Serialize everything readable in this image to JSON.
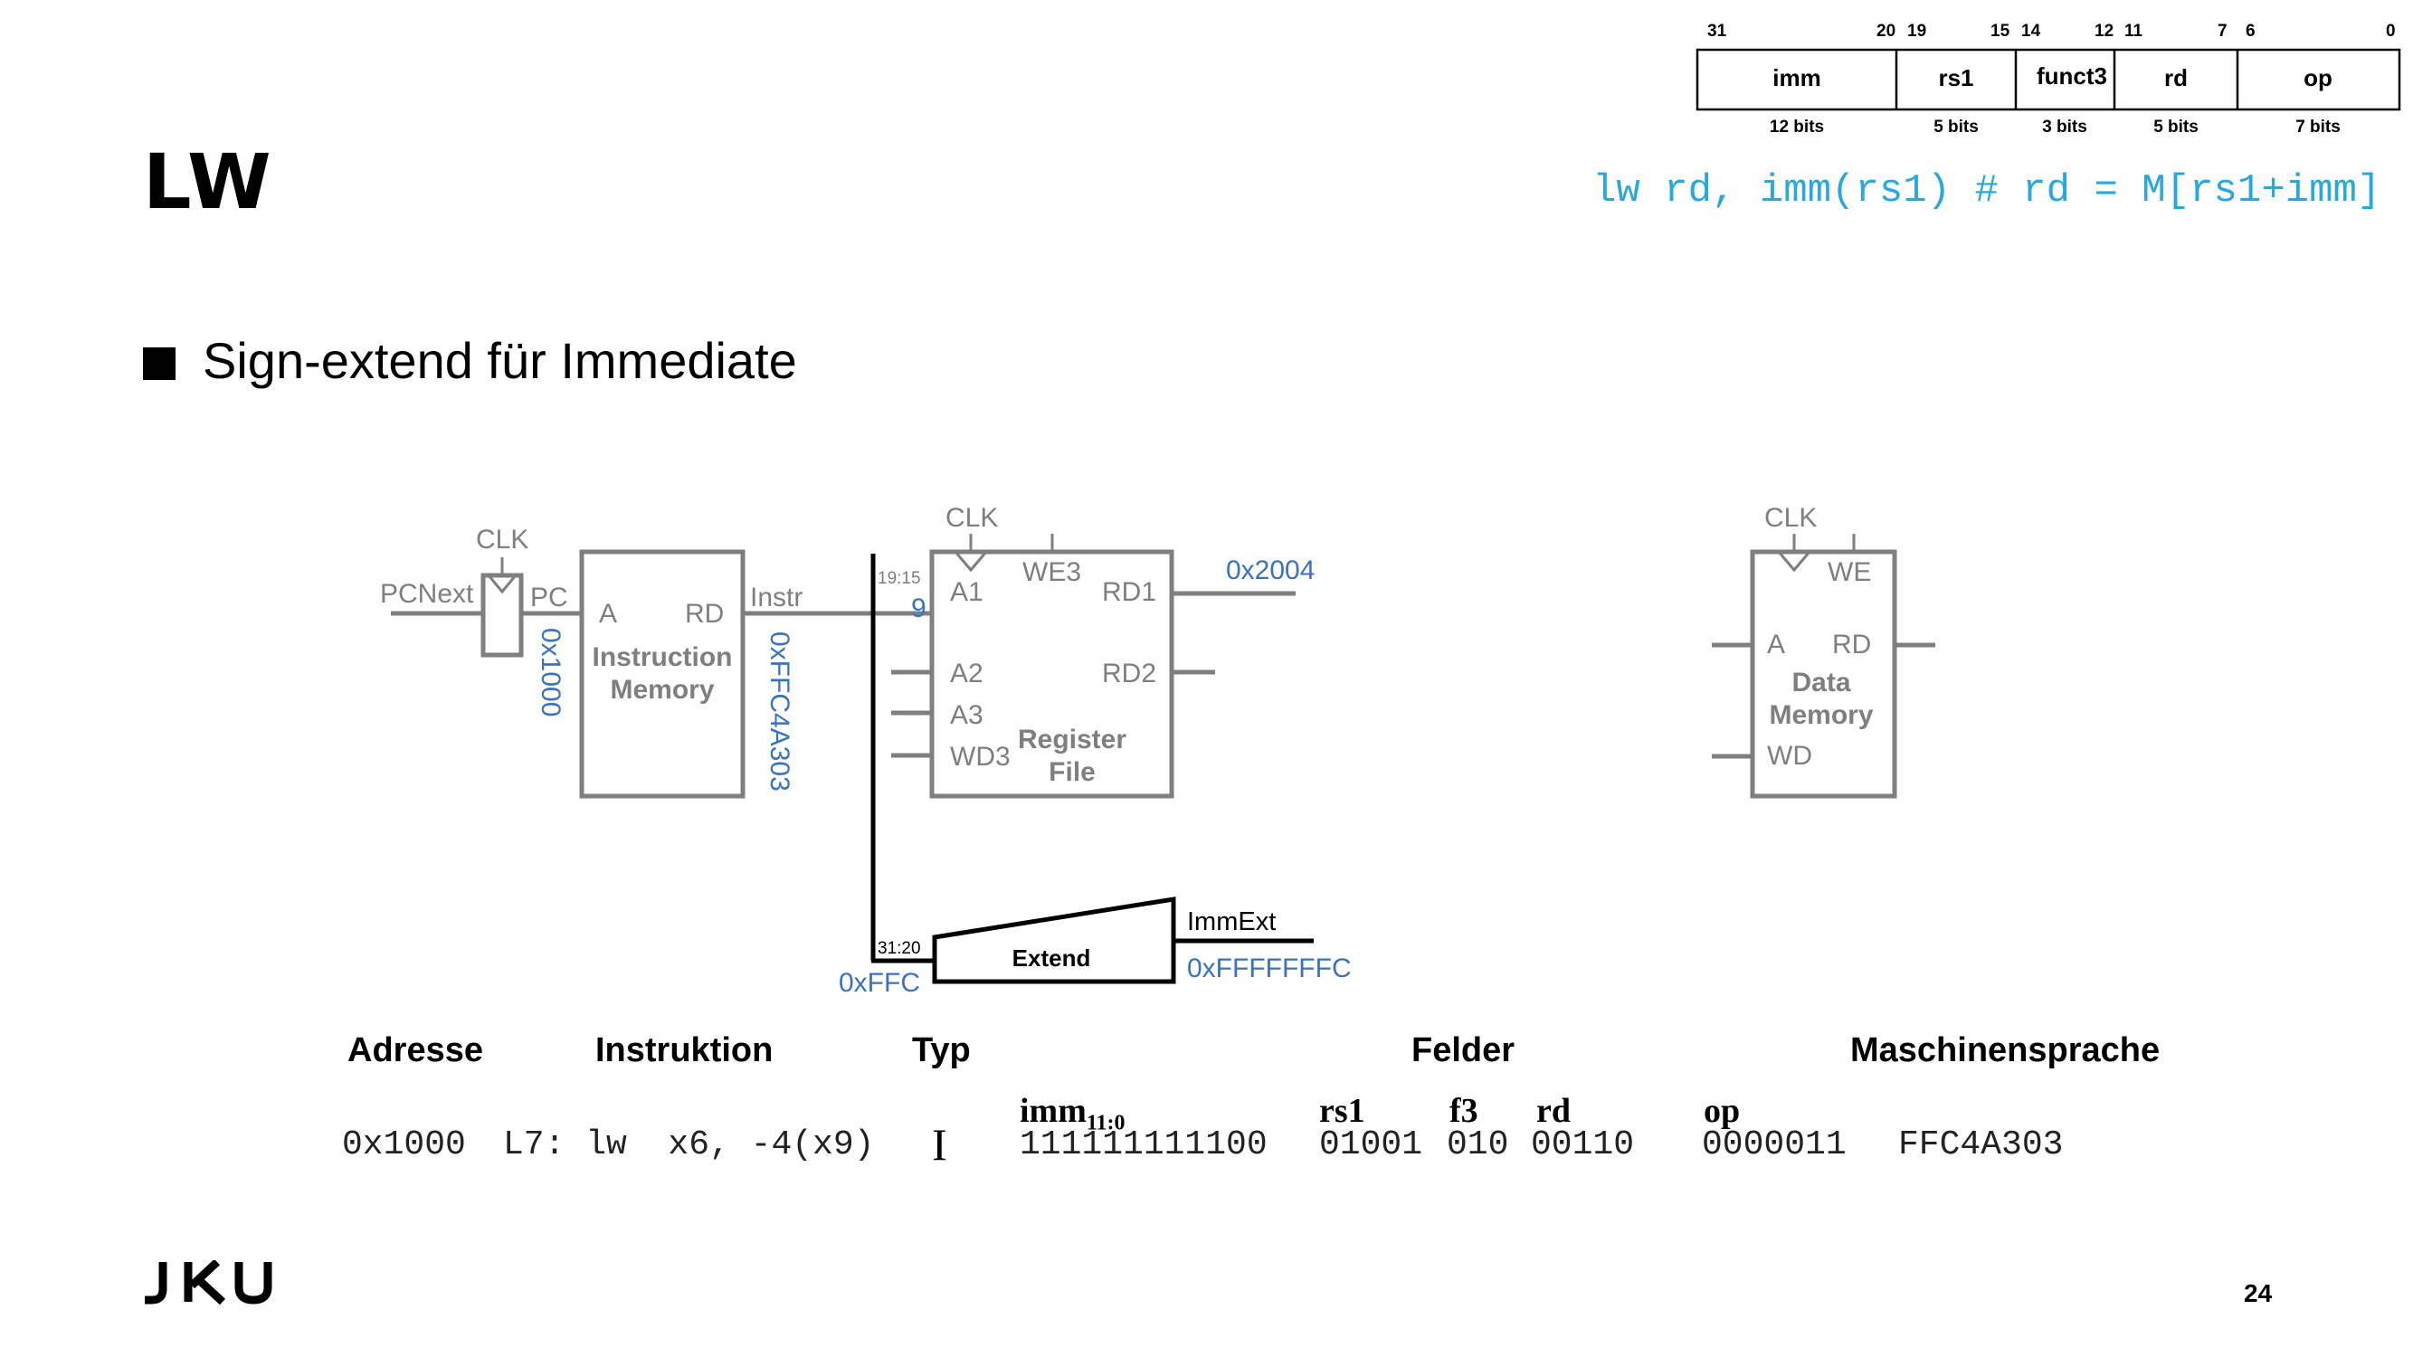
{
  "slide": {
    "title": "LW",
    "bullet": "Sign-extend für Immediate",
    "syntax": "lw rd, imm(rs1) # rd = M[rs1+imm]",
    "page_number": "24",
    "logo_text": "JKU"
  },
  "format": {
    "fields": [
      {
        "name": "imm",
        "hi": "31",
        "lo": "20",
        "width": "12 bits"
      },
      {
        "name": "rs1",
        "hi": "19",
        "lo": "15",
        "width": "5 bits"
      },
      {
        "name": "funct3",
        "hi": "14",
        "lo": "12",
        "width": "3 bits"
      },
      {
        "name": "rd",
        "hi": "11",
        "lo": "7",
        "width": "5 bits"
      },
      {
        "name": "op",
        "hi": "6",
        "lo": "0",
        "width": "7 bits"
      }
    ]
  },
  "datapath": {
    "pc": {
      "clk": "CLK",
      "in": "PCNext",
      "out": "PC",
      "value": "0x1000"
    },
    "imem": {
      "a": "A",
      "rd": "RD",
      "name1": "Instruction",
      "name2": "Memory",
      "out": "Instr",
      "value": "0xFFC4A303"
    },
    "regfile": {
      "clk": "CLK",
      "we3": "WE3",
      "a1": "A1",
      "a2": "A2",
      "a3": "A3",
      "wd3": "WD3",
      "rd1": "RD1",
      "rd2": "RD2",
      "name1": "Register",
      "name2": "File",
      "a1_bits": "19:15",
      "a1_value": "9",
      "rd1_value": "0x2004"
    },
    "extend": {
      "name": "Extend",
      "bits": "31:20",
      "in_value": "0xFFC",
      "out": "ImmExt",
      "out_value": "0xFFFFFFFC"
    },
    "dmem": {
      "clk": "CLK",
      "we": "WE",
      "a": "A",
      "rd": "RD",
      "wd": "WD",
      "name1": "Data",
      "name2": "Memory"
    }
  },
  "table": {
    "headers": {
      "address": "Adresse",
      "instruction": "Instruktion",
      "type": "Typ",
      "fields": "Felder",
      "machine": "Maschinensprache"
    },
    "field_labels": {
      "imm": "imm",
      "imm_sub": "11:0",
      "rs1": "rs1",
      "f3": "f3",
      "rd": "rd",
      "op": "op"
    },
    "row": {
      "address": "0x1000",
      "instruction": "L7: lw  x6, -4(x9)",
      "type": "I",
      "imm": "111111111100",
      "rs1": "01001",
      "f3": "010",
      "rd": "00110",
      "op": "0000011",
      "machine": "FFC4A303"
    }
  },
  "colors": {
    "accent": "#29a8e0",
    "value_blue": "#3a72c4",
    "wire_gray": "#7f7f7f"
  }
}
